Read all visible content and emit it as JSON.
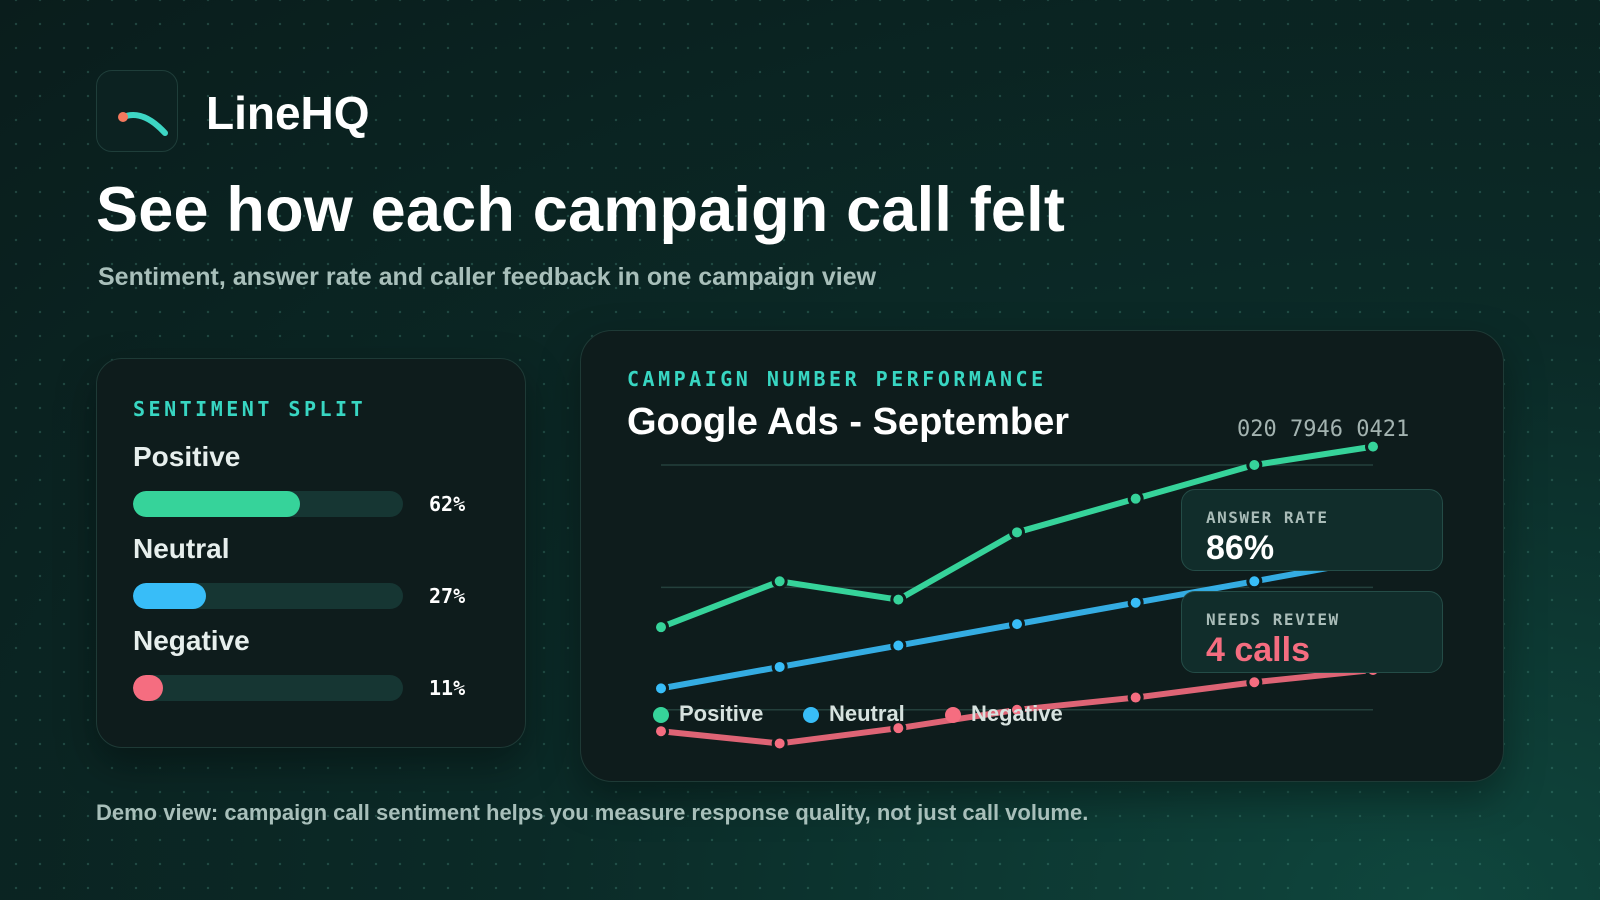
{
  "brand": {
    "name": "LineHQ",
    "logo_icon": "swoosh-logo-icon"
  },
  "hero": {
    "headline": "See how each campaign call felt",
    "subheadline": "Sentiment, answer rate and caller feedback in one campaign view"
  },
  "sentiment": {
    "eyebrow": "SENTIMENT SPLIT",
    "items": [
      {
        "label": "Positive",
        "percent_text": "62%",
        "value": 0.62,
        "color": "#36d39a"
      },
      {
        "label": "Neutral",
        "percent_text": "27%",
        "value": 0.27,
        "color": "#38bdf8"
      },
      {
        "label": "Negative",
        "percent_text": "11%",
        "value": 0.11,
        "color": "#f56d80"
      }
    ]
  },
  "performance": {
    "eyebrow": "CAMPAIGN NUMBER PERFORMANCE",
    "title": "Google Ads - September",
    "phone": "020 7946 0421",
    "answer_rate": {
      "label": "ANSWER RATE",
      "value": "86%"
    },
    "needs_review": {
      "label": "NEEDS REVIEW",
      "value": "4 calls"
    }
  },
  "colors": {
    "accent": "#38d6c2",
    "positive": "#36d39a",
    "neutral": "#38bdf8",
    "negative": "#f56d80"
  },
  "chart_data": {
    "type": "line",
    "x": [
      1,
      2,
      3,
      4,
      5,
      6,
      7
    ],
    "ylim": [
      0,
      100
    ],
    "grid": true,
    "legend_position": "bottom-left",
    "series": [
      {
        "name": "Positive",
        "color": "#36d39a",
        "values": [
          47,
          62,
          56,
          78,
          89,
          100,
          106
        ]
      },
      {
        "name": "Neutral",
        "color": "#38bdf8",
        "values": [
          27,
          34,
          41,
          48,
          55,
          62,
          69
        ]
      },
      {
        "name": "Negative",
        "color": "#f56d80",
        "values": [
          13,
          9,
          14,
          20,
          24,
          29,
          33
        ]
      }
    ]
  },
  "footer": {
    "text": "Demo view: campaign call sentiment helps you measure response quality, not just call volume."
  }
}
